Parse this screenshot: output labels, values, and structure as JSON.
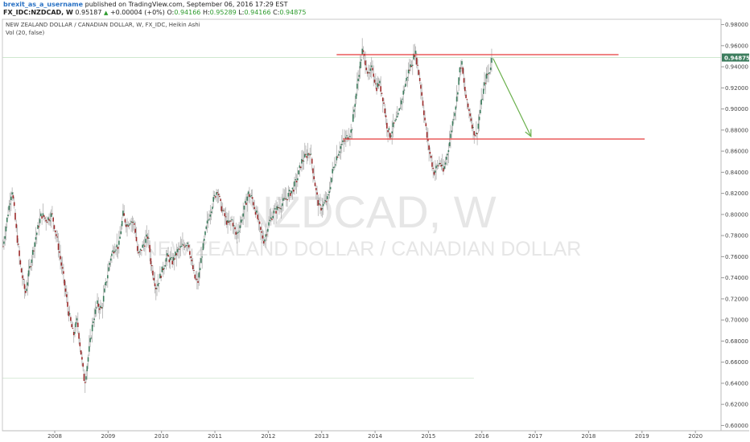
{
  "header": {
    "author": "brexit_as_a_username",
    "published": "published on TradingView.com, September 06, 2016 17:29 EST",
    "symbol": "FX_IDC:NZDCAD, W",
    "last": "0.95187",
    "change_icon": "up-triangle-icon",
    "change": "+0.00004 (+0%)",
    "o_label": "O:",
    "o_value": "0.94166",
    "h_label": "H:",
    "h_value": "0.95289",
    "l_label": "L:",
    "l_value": "0.94166",
    "c_label": "C:",
    "c_value": "0.94875"
  },
  "chart_data": {
    "type": "candlestick",
    "title": "NEW ZEALAND DOLLAR / CANADIAN DOLLAR, W, FX_IDC, Heikin Ashi",
    "indicator": "Vol (20, false)",
    "watermark_symbol": "NZDCAD, W",
    "watermark_name": "NEW ZEALAND DOLLAR / CANADIAN DOLLAR",
    "ylim": [
      0.595,
      0.985
    ],
    "xlim": [
      2007.52,
      2020.98
    ],
    "y_ticks": [
      "0.60000",
      "0.62000",
      "0.64000",
      "0.66000",
      "0.68000",
      "0.70000",
      "0.72000",
      "0.74000",
      "0.76000",
      "0.78000",
      "0.80000",
      "0.82000",
      "0.84000",
      "0.86000",
      "0.88000",
      "0.90000",
      "0.92000",
      "0.94000",
      "0.96000",
      "0.98000"
    ],
    "x_ticks": [
      "2008",
      "2009",
      "2010",
      "2011",
      "2012",
      "2013",
      "2014",
      "2015",
      "2016",
      "2017",
      "2018",
      "2019",
      "2020"
    ],
    "current_price_label": "0.94875",
    "current_price": 0.94875,
    "up_color": "#3d7d5e",
    "down_color": "#9c2a2a",
    "wick_color": "#b0b0b0",
    "price_path": [
      [
        2007.53,
        0.77
      ],
      [
        2007.62,
        0.8
      ],
      [
        2007.7,
        0.825
      ],
      [
        2007.78,
        0.785
      ],
      [
        2007.86,
        0.75
      ],
      [
        2007.95,
        0.725
      ],
      [
        2008.05,
        0.755
      ],
      [
        2008.15,
        0.78
      ],
      [
        2008.25,
        0.8
      ],
      [
        2008.35,
        0.795
      ],
      [
        2008.45,
        0.8
      ],
      [
        2008.55,
        0.775
      ],
      [
        2008.65,
        0.745
      ],
      [
        2008.75,
        0.71
      ],
      [
        2008.85,
        0.685
      ],
      [
        2008.92,
        0.7
      ],
      [
        2009.0,
        0.665
      ],
      [
        2009.06,
        0.64
      ],
      [
        2009.14,
        0.67
      ],
      [
        2009.22,
        0.7
      ],
      [
        2009.3,
        0.715
      ],
      [
        2009.38,
        0.71
      ],
      [
        2009.46,
        0.735
      ],
      [
        2009.55,
        0.76
      ],
      [
        2009.63,
        0.77
      ],
      [
        2009.7,
        0.77
      ],
      [
        2009.78,
        0.8
      ],
      [
        2009.85,
        0.79
      ],
      [
        2009.92,
        0.795
      ],
      [
        2010.0,
        0.79
      ],
      [
        2010.06,
        0.76
      ],
      [
        2010.15,
        0.77
      ],
      [
        2010.25,
        0.78
      ],
      [
        2010.3,
        0.755
      ],
      [
        2010.4,
        0.73
      ],
      [
        2010.5,
        0.745
      ],
      [
        2010.6,
        0.76
      ],
      [
        2010.7,
        0.755
      ],
      [
        2010.8,
        0.765
      ],
      [
        2010.9,
        0.77
      ],
      [
        2011.0,
        0.775
      ],
      [
        2011.06,
        0.755
      ],
      [
        2011.12,
        0.74
      ],
      [
        2011.18,
        0.735
      ],
      [
        2011.25,
        0.76
      ],
      [
        2011.35,
        0.79
      ],
      [
        2011.45,
        0.81
      ],
      [
        2011.55,
        0.825
      ],
      [
        2011.6,
        0.81
      ],
      [
        2011.67,
        0.8
      ],
      [
        2011.75,
        0.79
      ],
      [
        2011.82,
        0.795
      ],
      [
        2011.9,
        0.78
      ],
      [
        2011.97,
        0.79
      ],
      [
        2012.05,
        0.805
      ],
      [
        2012.12,
        0.82
      ],
      [
        2012.2,
        0.815
      ],
      [
        2012.28,
        0.8
      ],
      [
        2012.35,
        0.785
      ],
      [
        2012.42,
        0.775
      ],
      [
        2012.5,
        0.79
      ],
      [
        2012.58,
        0.8
      ],
      [
        2012.66,
        0.805
      ],
      [
        2012.75,
        0.81
      ],
      [
        2012.83,
        0.815
      ],
      [
        2012.9,
        0.82
      ],
      [
        2012.97,
        0.825
      ],
      [
        2013.05,
        0.835
      ],
      [
        2013.12,
        0.85
      ],
      [
        2013.2,
        0.855
      ],
      [
        2013.28,
        0.86
      ],
      [
        2013.33,
        0.845
      ],
      [
        2013.4,
        0.82
      ],
      [
        2013.46,
        0.805
      ],
      [
        2013.55,
        0.81
      ],
      [
        2013.62,
        0.815
      ],
      [
        2013.7,
        0.84
      ],
      [
        2013.78,
        0.855
      ],
      [
        2013.86,
        0.865
      ],
      [
        2013.93,
        0.87
      ],
      [
        2014.0,
        0.875
      ],
      [
        2014.06,
        0.88
      ],
      [
        2014.12,
        0.905
      ],
      [
        2014.2,
        0.935
      ],
      [
        2014.26,
        0.955
      ],
      [
        2014.32,
        0.945
      ],
      [
        2014.38,
        0.93
      ],
      [
        2014.45,
        0.94
      ],
      [
        2014.52,
        0.92
      ],
      [
        2014.58,
        0.925
      ],
      [
        2014.65,
        0.91
      ],
      [
        2014.72,
        0.885
      ],
      [
        2014.78,
        0.875
      ],
      [
        2014.85,
        0.885
      ],
      [
        2014.92,
        0.89
      ],
      [
        2014.98,
        0.905
      ],
      [
        2015.05,
        0.92
      ],
      [
        2015.12,
        0.935
      ],
      [
        2015.2,
        0.945
      ],
      [
        2015.25,
        0.955
      ],
      [
        2015.3,
        0.94
      ],
      [
        2015.36,
        0.92
      ],
      [
        2015.42,
        0.895
      ],
      [
        2015.48,
        0.87
      ],
      [
        2015.54,
        0.855
      ],
      [
        2015.6,
        0.84
      ],
      [
        2015.66,
        0.845
      ],
      [
        2015.72,
        0.85
      ],
      [
        2015.78,
        0.84
      ],
      [
        2015.84,
        0.855
      ],
      [
        2015.9,
        0.87
      ],
      [
        2015.96,
        0.89
      ],
      [
        2016.03,
        0.91
      ],
      [
        2016.08,
        0.935
      ],
      [
        2016.12,
        0.945
      ],
      [
        2016.16,
        0.925
      ],
      [
        2016.22,
        0.905
      ],
      [
        2016.28,
        0.895
      ],
      [
        2016.34,
        0.88
      ],
      [
        2016.4,
        0.875
      ],
      [
        2016.46,
        0.895
      ],
      [
        2016.52,
        0.915
      ],
      [
        2016.58,
        0.93
      ],
      [
        2016.64,
        0.935
      ],
      [
        2016.69,
        0.9488
      ]
    ],
    "trend_lines": [
      {
        "name": "resistance",
        "color": "#e53b3b",
        "x1": 2013.78,
        "y1": 0.9515,
        "x2": 2019.06,
        "y2": 0.9515
      },
      {
        "name": "support",
        "color": "#e53b3b",
        "x1": 2013.9,
        "y1": 0.8715,
        "x2": 2019.55,
        "y2": 0.8715
      },
      {
        "name": "projection",
        "color": "#6ab04c",
        "x1": 2016.71,
        "y1": 0.948,
        "x2": 2017.42,
        "y2": 0.874
      }
    ],
    "reference_lines": [
      {
        "color": "#cfe8cf",
        "y": 0.9488,
        "x1": 2007.52,
        "x2": 2020.98
      },
      {
        "color": "#d7ead7",
        "y": 0.6448,
        "x1": 2007.52,
        "x2": 2016.35
      }
    ]
  }
}
